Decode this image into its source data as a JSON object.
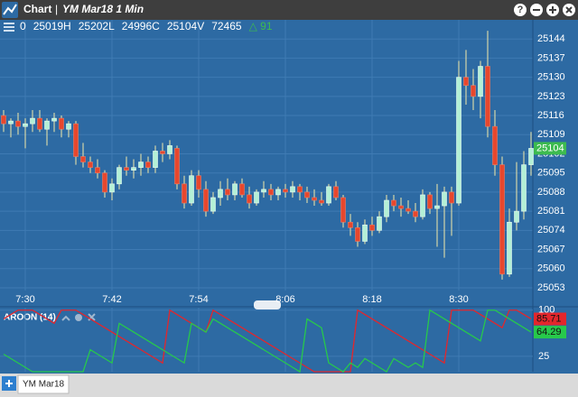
{
  "window": {
    "title": "Chart",
    "subtitle": "YM Mar18 1 Min"
  },
  "tabs": [
    "YM Mar18"
  ],
  "chart_data": [
    {
      "type": "candlestick",
      "info": [
        "0",
        "25019H",
        "25202L",
        "24996C",
        "25104V",
        "72465",
        "△ 91"
      ],
      "categories": [
        null,
        null,
        null,
        "7:30",
        null,
        null,
        null,
        null,
        null,
        null,
        null,
        null,
        null,
        null,
        null,
        "7:42",
        null,
        null,
        null,
        null,
        null,
        null,
        null,
        null,
        null,
        null,
        null,
        "7:54",
        null,
        null,
        null,
        null,
        null,
        null,
        null,
        null,
        null,
        null,
        null,
        "8:06",
        null,
        null,
        null,
        null,
        null,
        null,
        null,
        null,
        null,
        null,
        null,
        "8:18",
        null,
        null,
        null,
        null,
        null,
        null,
        null,
        null,
        null,
        null,
        null,
        "8:30",
        null,
        null,
        null,
        null,
        null,
        null,
        null,
        null,
        null,
        null
      ],
      "open": [
        25116,
        25113,
        25114,
        25112,
        25113,
        25115,
        25111,
        25114,
        25115,
        25111,
        25113,
        25101,
        25099,
        25097,
        25095,
        25088,
        25091,
        25097,
        25096,
        25097,
        25099,
        25097,
        25103,
        25102,
        25104,
        25091,
        25084,
        25094,
        25089,
        25081,
        25086,
        25089,
        25087,
        25091,
        25087,
        25084,
        25088,
        25089,
        25087,
        25089,
        25088,
        25090,
        25088,
        25086,
        25085,
        25084,
        25090,
        25086,
        25077,
        25075,
        25070,
        25076,
        25074,
        25079,
        25085,
        25083,
        25082,
        25081,
        25079,
        25087,
        25082,
        25083,
        25088,
        25084,
        25130,
        25127,
        25123,
        25134,
        25112,
        25098,
        25058,
        25077,
        25081,
        25098
      ],
      "high": [
        25118,
        25115,
        25117,
        25115,
        25118,
        25118,
        25115,
        25117,
        25116,
        25114,
        25114,
        25106,
        25101,
        25100,
        25096,
        25093,
        25098,
        25101,
        25100,
        25102,
        25101,
        25105,
        25106,
        25107,
        25105,
        25094,
        25096,
        25096,
        25092,
        25088,
        25092,
        25093,
        25092,
        25093,
        25090,
        25089,
        25092,
        25091,
        25090,
        25091,
        25092,
        25091,
        25090,
        25089,
        25088,
        25091,
        25092,
        25087,
        25080,
        25077,
        25078,
        25079,
        25081,
        25087,
        25087,
        25086,
        25085,
        25084,
        25089,
        25088,
        25091,
        25090,
        25090,
        25136,
        25140,
        25133,
        25136,
        25147,
        25118,
        25101,
        25082,
        25099,
        25103,
        25110
      ],
      "low": [
        25110,
        25108,
        25109,
        25104,
        25110,
        25110,
        25105,
        25110,
        25108,
        25108,
        25098,
        25097,
        25095,
        25093,
        25086,
        25085,
        25089,
        25094,
        25093,
        25094,
        25095,
        25095,
        25099,
        25100,
        25089,
        25082,
        25083,
        25086,
        25079,
        25080,
        25083,
        25085,
        25085,
        25086,
        25082,
        25083,
        25086,
        25085,
        25085,
        25086,
        25086,
        25085,
        25084,
        25083,
        25083,
        25083,
        25085,
        25075,
        25072,
        25068,
        25069,
        25072,
        25073,
        25077,
        25081,
        25079,
        25080,
        25077,
        25078,
        25080,
        25068,
        25064,
        25072,
        25083,
        25120,
        25118,
        25115,
        25108,
        25094,
        25056,
        25057,
        25074,
        25078,
        25094
      ],
      "close": [
        25113,
        25114,
        25112,
        25113,
        25115,
        25111,
        25114,
        25115,
        25111,
        25113,
        25101,
        25099,
        25097,
        25095,
        25088,
        25091,
        25097,
        25096,
        25097,
        25099,
        25097,
        25103,
        25102,
        25105,
        25091,
        25084,
        25094,
        25089,
        25081,
        25086,
        25089,
        25087,
        25091,
        25087,
        25084,
        25088,
        25089,
        25087,
        25089,
        25088,
        25090,
        25088,
        25086,
        25085,
        25084,
        25090,
        25086,
        25077,
        25075,
        25070,
        25076,
        25074,
        25079,
        25085,
        25083,
        25082,
        25081,
        25079,
        25087,
        25082,
        25083,
        25088,
        25084,
        25130,
        25127,
        25123,
        25134,
        25112,
        25098,
        25058,
        25077,
        25081,
        25098,
        25104
      ],
      "up_color": "#b4f0d6",
      "down_color": "#e8472d",
      "wick_color": "#f3eaa8",
      "last_color": "#3dbb4f",
      "ylim": [
        25052,
        25151
      ],
      "yticks": [
        25053,
        25060,
        25067,
        25074,
        25081,
        25088,
        25095,
        25102,
        25109,
        25116,
        25123,
        25130,
        25137,
        25144
      ],
      "grid": true
    },
    {
      "type": "line",
      "title": "AROON (14)",
      "series": [
        {
          "color": "#e3262c",
          "values": [
            85.71,
            92.86,
            100,
            100,
            100,
            92.86,
            85.71,
            78.57,
            100,
            100,
            100,
            92.86,
            85.71,
            78.57,
            71.43,
            64.29,
            57.14,
            50,
            42.86,
            35.71,
            28.57,
            21.43,
            14.29,
            100,
            92.86,
            85.71,
            78.57,
            71.43,
            64.29,
            100,
            92.86,
            85.71,
            78.57,
            71.43,
            64.29,
            57.14,
            50,
            42.86,
            35.71,
            28.57,
            21.43,
            14.29,
            7.14,
            0,
            0,
            0,
            0,
            0,
            0,
            100,
            92.86,
            85.71,
            78.57,
            71.43,
            64.29,
            57.14,
            50,
            42.86,
            35.71,
            28.57,
            21.43,
            14.29,
            100,
            100,
            100,
            100,
            92.86,
            85.71,
            78.57,
            71.43,
            100,
            100,
            92.86,
            85.71
          ]
        },
        {
          "color": "#27c94b",
          "values": [
            28.57,
            21.43,
            14.29,
            7.14,
            0,
            0,
            0,
            0,
            0,
            0,
            0,
            0,
            35.71,
            28.57,
            21.43,
            14.29,
            78.57,
            71.43,
            64.29,
            57.14,
            50,
            42.86,
            35.71,
            28.57,
            21.43,
            14.29,
            78.57,
            71.43,
            64.29,
            85.71,
            78.57,
            71.43,
            64.29,
            57.14,
            50,
            42.86,
            35.71,
            28.57,
            21.43,
            14.29,
            7.14,
            0,
            85.71,
            78.57,
            71.43,
            14.29,
            7.14,
            0,
            14.29,
            7.14,
            21.43,
            14.29,
            7.14,
            0,
            21.43,
            14.29,
            7.14,
            14.29,
            7.14,
            100,
            92.86,
            85.71,
            78.57,
            71.43,
            64.29,
            57.14,
            50,
            100,
            100,
            92.86,
            85.71,
            78.57,
            71.43,
            64.29
          ]
        }
      ],
      "ylim": [
        0,
        104
      ],
      "yticks": [
        25,
        100
      ],
      "grid": true
    }
  ]
}
